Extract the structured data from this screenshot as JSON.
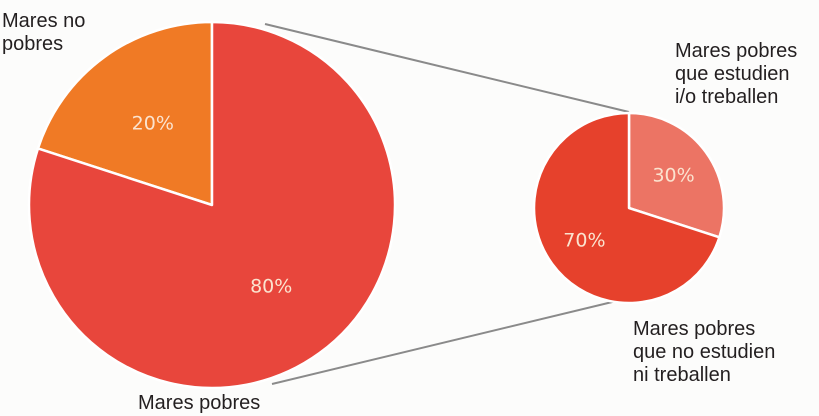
{
  "colors": {
    "mares_no_pobres": "#f07a25",
    "mares_pobres": "#e8463c",
    "estudien_treballen": "#ec7464",
    "no_estudien": "#e6412c",
    "connector": "#8a8a8a",
    "edge": "#ffffff"
  },
  "chart_data": [
    {
      "type": "pie",
      "categories": [
        "Mares no\npobres",
        "Mares pobres"
      ],
      "values": [
        20,
        80
      ],
      "data_labels": [
        "20%",
        "80%"
      ]
    },
    {
      "type": "pie",
      "categories": [
        "Mares pobres\nque estudien\ni/o treballen",
        "Mares pobres\nque no estudien\nni treballen"
      ],
      "values": [
        30,
        70
      ],
      "data_labels": [
        "30%",
        "70%"
      ]
    }
  ]
}
